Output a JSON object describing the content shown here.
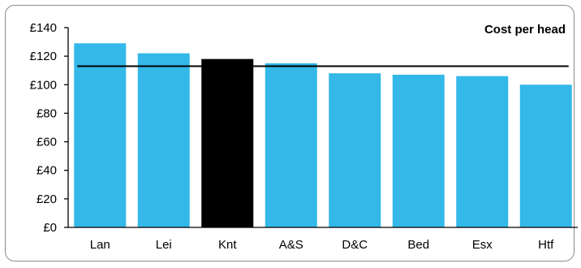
{
  "chart_data": {
    "type": "bar",
    "title": "Cost per head",
    "categories": [
      "Lan",
      "Lei",
      "Knt",
      "A&S",
      "D&C",
      "Bed",
      "Esx",
      "Htf"
    ],
    "values": [
      129,
      122,
      118,
      115,
      108,
      107,
      106,
      100
    ],
    "highlight_category": "Knt",
    "reference_line": 113,
    "ylim": [
      0,
      140
    ],
    "yticks": [
      0,
      20,
      40,
      60,
      80,
      100,
      120,
      140
    ],
    "ytick_labels": [
      "£0",
      "£20",
      "£40",
      "£60",
      "£80",
      "£100",
      "£120",
      "£140"
    ],
    "xlabel": "",
    "ylabel": "",
    "grid": false,
    "bar_color": "#33b8e8",
    "highlight_color": "#000000",
    "reference_line_color": "#000000"
  }
}
